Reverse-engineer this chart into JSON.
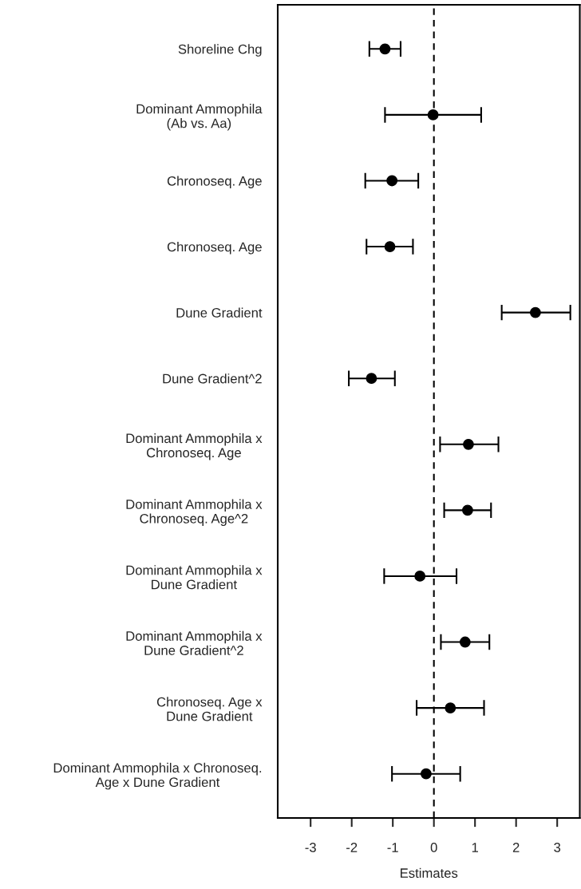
{
  "chart_data": {
    "type": "scatter",
    "orientation": "horizontal",
    "xlabel": "Estimates",
    "categories": [
      "Shoreline Chg",
      "Dominant Ammophila\n(Ab vs. Aa)",
      "Chronoseq. Age",
      "Chronoseq. Age",
      "Dune Gradient",
      "Dune Gradient^2",
      "Dominant Ammophila x\nChronoseq. Age",
      "Dominant Ammophila x\nChronoseq. Age^2",
      "Dominant Ammophila x\nDune Gradient",
      "Dominant Ammophila x\nDune Gradient^2",
      "Chronoseq. Age x\nDune Gradient",
      "Dominant Ammophila x Chronoseq.\nAge x Dune Gradient"
    ],
    "values": [
      -1.19,
      -0.02,
      -1.02,
      -1.07,
      2.47,
      -1.52,
      0.84,
      0.82,
      -0.34,
      0.76,
      0.4,
      -0.19
    ],
    "errors": [
      [
        -1.57,
        -0.81
      ],
      [
        -1.19,
        1.15
      ],
      [
        -1.67,
        -0.38
      ],
      [
        -1.64,
        -0.51
      ],
      [
        1.65,
        3.32
      ],
      [
        -2.07,
        -0.95
      ],
      [
        0.15,
        1.57
      ],
      [
        0.25,
        1.39
      ],
      [
        -1.21,
        0.55
      ],
      [
        0.17,
        1.35
      ],
      [
        -0.42,
        1.22
      ],
      [
        -1.02,
        0.64
      ]
    ],
    "color": "#000000",
    "marker": "circle",
    "xlim": [
      -3.8,
      3.55
    ],
    "xticks": [
      -3,
      -2,
      -1,
      0,
      1,
      2,
      3
    ],
    "ref_lines": [
      {
        "axis": "x",
        "value": 0,
        "color": "#000000",
        "line_style": "dashed"
      }
    ]
  }
}
